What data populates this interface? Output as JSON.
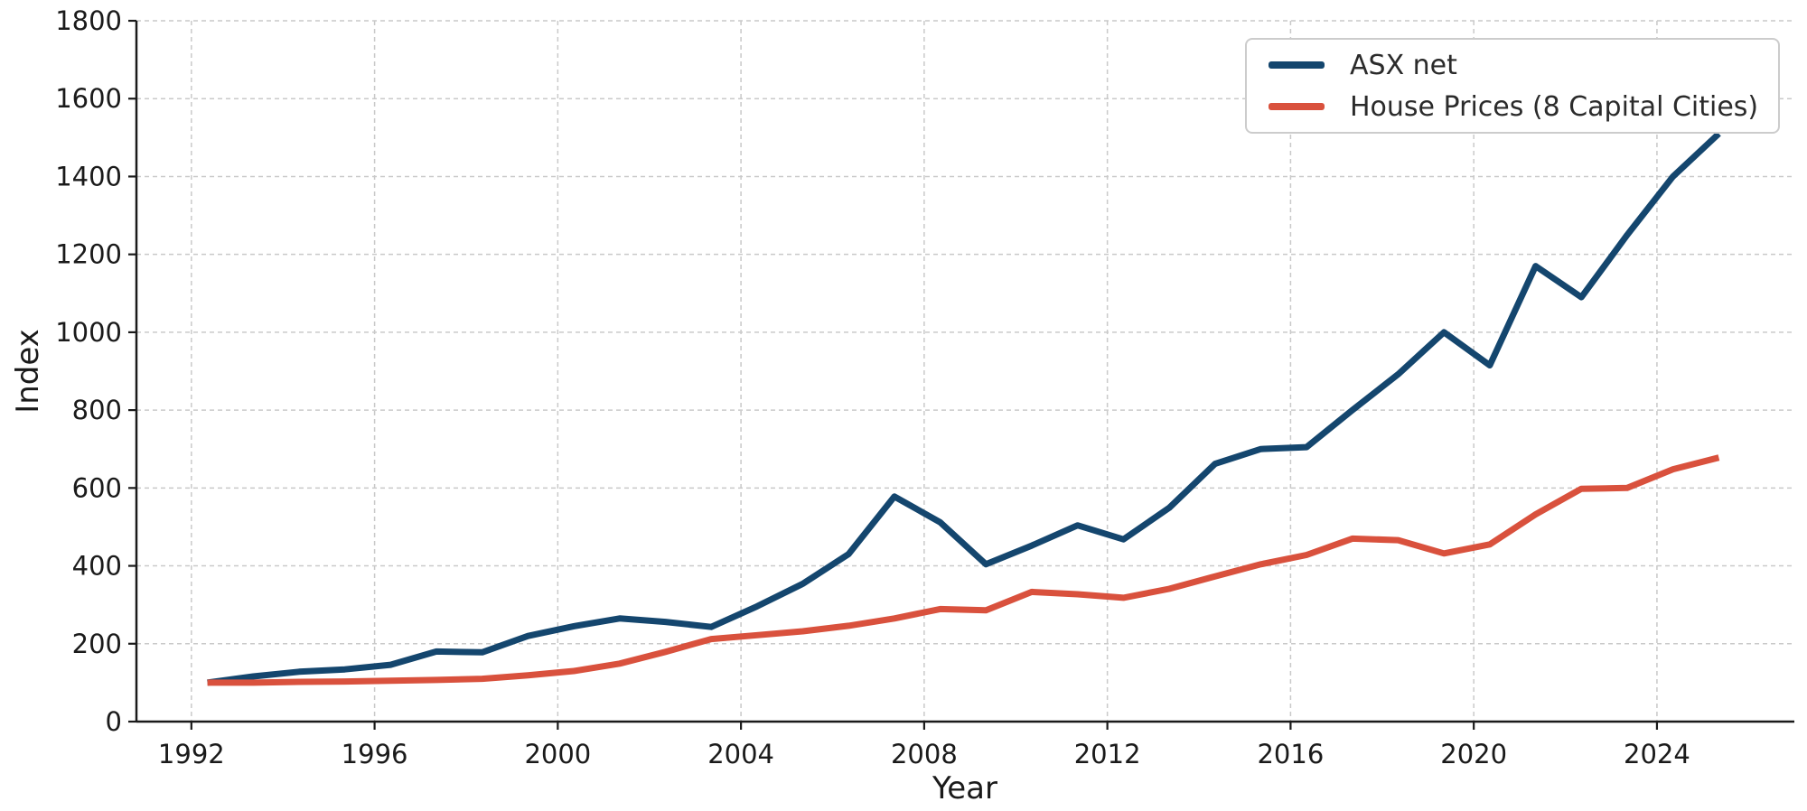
{
  "chart_data": {
    "type": "line",
    "title": "",
    "xlabel": "Year",
    "ylabel": "Index",
    "x_years": [
      1992,
      1993,
      1994,
      1995,
      1996,
      1997,
      1998,
      1999,
      2000,
      2001,
      2002,
      2003,
      2004,
      2005,
      2006,
      2007,
      2008,
      2009,
      2010,
      2011,
      2012,
      2013,
      2014,
      2015,
      2016,
      2017,
      2018,
      2019,
      2020,
      2021,
      2022,
      2023,
      2024,
      2025
    ],
    "x_point_offset": 0.35,
    "series": [
      {
        "name": "ASX net",
        "color": "#14466e",
        "values": [
          100,
          116,
          128,
          134,
          146,
          180,
          178,
          220,
          245,
          265,
          256,
          243,
          296,
          354,
          430,
          578,
          512,
          404,
          452,
          504,
          468,
          549,
          662,
          700,
          705,
          800,
          892,
          1000,
          915,
          1170,
          1090,
          1250,
          1400,
          1510
        ]
      },
      {
        "name": "House Prices (8 Capital Cities)",
        "color": "#d9513d",
        "values": [
          100,
          100,
          102,
          103,
          105,
          107,
          110,
          119,
          130,
          149,
          179,
          212,
          222,
          232,
          246,
          265,
          289,
          286,
          333,
          327,
          318,
          341,
          373,
          404,
          428,
          470,
          466,
          432,
          455,
          532,
          598,
          600,
          648,
          678
        ]
      }
    ],
    "xlim": [
      1990.8,
      2027.0
    ],
    "ylim": [
      0,
      1800
    ],
    "x_ticks": [
      1992,
      1996,
      2000,
      2004,
      2008,
      2012,
      2016,
      2020,
      2024
    ],
    "y_ticks": [
      0,
      200,
      400,
      600,
      800,
      1000,
      1200,
      1400,
      1600,
      1800
    ],
    "grid": "dashed",
    "grid_color": "#c9c9c9",
    "spine_color": "#1a1a1a",
    "legend_position": "top-right"
  }
}
